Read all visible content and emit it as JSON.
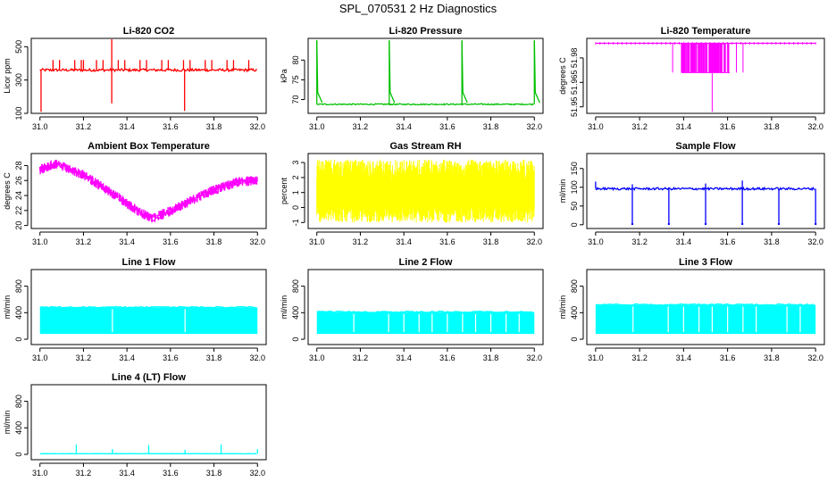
{
  "page": {
    "title": "SPL_070531  2 Hz Diagnostics"
  },
  "colors": {
    "axis": "#000000",
    "background": "#ffffff"
  },
  "chart_data": [
    {
      "id": "co2",
      "type": "line",
      "title": "Li-820 CO2",
      "ylabel": "Licor ppm",
      "color": "#ff0000",
      "xlim": [
        31.0,
        32.0
      ],
      "ylim": [
        100,
        550
      ],
      "xticks": [
        31.0,
        31.2,
        31.4,
        31.6,
        31.8,
        32.0
      ],
      "xtick_labels": [
        "31.0",
        "31.2",
        "31.4",
        "31.6",
        "31.8",
        "32.0"
      ],
      "yticks": [
        100,
        300,
        500
      ],
      "ytick_labels": [
        "100",
        "300",
        "500"
      ],
      "baseline": 360,
      "noise": 8,
      "spikes_up": [
        31.06,
        31.09,
        31.16,
        31.19,
        31.26,
        31.29,
        31.36,
        31.39,
        31.46,
        31.49,
        31.56,
        31.59,
        31.66,
        31.69,
        31.76,
        31.79,
        31.86,
        31.89,
        31.96
      ],
      "spike_up_value": 420,
      "extremes": [
        {
          "x": 31.005,
          "y": 110
        },
        {
          "x": 31.33,
          "y": 545
        },
        {
          "x": 31.33,
          "y": 160
        },
        {
          "x": 31.665,
          "y": 115
        },
        {
          "x": 31.2,
          "y": 420
        }
      ]
    },
    {
      "id": "pressure",
      "type": "line",
      "title": "Li-820 Pressure",
      "ylabel": "kPa",
      "color": "#00c000",
      "xlim": [
        31.0,
        32.0
      ],
      "ylim": [
        66.5,
        85.5
      ],
      "xticks": [
        31.0,
        31.2,
        31.4,
        31.6,
        31.8,
        32.0
      ],
      "xtick_labels": [
        "31.0",
        "31.2",
        "31.4",
        "31.6",
        "31.8",
        "32.0"
      ],
      "yticks": [
        70,
        75,
        80
      ],
      "ytick_labels": [
        "70",
        "75",
        "80"
      ],
      "baseline": 68.8,
      "noise": 0.15,
      "spikes_up": [
        31.0,
        31.333,
        31.667,
        32.0
      ],
      "spike_up_value": 85.0
    },
    {
      "id": "licor_temp",
      "type": "line",
      "title": "Li-820 Temperature",
      "ylabel": "degrees C",
      "color": "#ff00ff",
      "xlim": [
        31.0,
        32.0
      ],
      "ylim": [
        51.946,
        51.992
      ],
      "xticks": [
        31.0,
        31.2,
        31.4,
        31.6,
        31.8,
        32.0
      ],
      "xtick_labels": [
        "31.0",
        "31.2",
        "31.4",
        "31.6",
        "31.8",
        "32.0"
      ],
      "yticks": [
        51.95,
        51.965,
        51.98
      ],
      "ytick_labels": [
        "51.95",
        "51.965",
        "51.98"
      ],
      "baseline": 51.989,
      "low_level": 51.971,
      "band": [
        31.39,
        31.61
      ],
      "sparse": [
        31.35,
        31.64,
        31.67
      ],
      "dip": {
        "x": 31.53,
        "y": 51.947
      }
    },
    {
      "id": "box_temp",
      "type": "area",
      "title": "Ambient Box Temperature",
      "ylabel": "degrees C",
      "color": "#ff00ff",
      "xlim": [
        31.0,
        32.0
      ],
      "ylim": [
        19.6,
        29.6
      ],
      "xticks": [
        31.0,
        31.2,
        31.4,
        31.6,
        31.8,
        32.0
      ],
      "xtick_labels": [
        "31.0",
        "31.2",
        "31.4",
        "31.6",
        "31.8",
        "32.0"
      ],
      "yticks": [
        20,
        22,
        24,
        26,
        28
      ],
      "ytick_labels": [
        "20",
        "22",
        "24",
        "26",
        "28"
      ],
      "center": [
        {
          "x": 31.0,
          "y": 27.5
        },
        {
          "x": 31.07,
          "y": 28.3
        },
        {
          "x": 31.2,
          "y": 26.8
        },
        {
          "x": 31.35,
          "y": 24.0
        },
        {
          "x": 31.47,
          "y": 21.6
        },
        {
          "x": 31.52,
          "y": 21.0
        },
        {
          "x": 31.6,
          "y": 22.0
        },
        {
          "x": 31.75,
          "y": 24.2
        },
        {
          "x": 31.9,
          "y": 25.8
        },
        {
          "x": 32.0,
          "y": 26.1
        }
      ],
      "noise": 0.9
    },
    {
      "id": "rh",
      "type": "area",
      "title": "Gas Stream RH",
      "ylabel": "percent",
      "color": "#ffff00",
      "xlim": [
        31.0,
        32.0
      ],
      "ylim": [
        -1.4,
        3.6
      ],
      "xticks": [
        31.0,
        31.2,
        31.4,
        31.6,
        31.8,
        32.0
      ],
      "xtick_labels": [
        "31.0",
        "31.2",
        "31.4",
        "31.6",
        "31.8",
        "32.0"
      ],
      "yticks": [
        -1,
        0,
        1,
        2,
        3
      ],
      "ytick_labels": [
        "-1",
        "0",
        "1",
        "2",
        "3"
      ],
      "low": -1.0,
      "high": 3.2
    },
    {
      "id": "sample_flow",
      "type": "line",
      "title": "Sample Flow",
      "ylabel": "ml/min",
      "color": "#0000ff",
      "xlim": [
        31.0,
        32.0
      ],
      "ylim": [
        -10,
        190
      ],
      "xticks": [
        31.0,
        31.2,
        31.4,
        31.6,
        31.8,
        32.0
      ],
      "xtick_labels": [
        "31.0",
        "31.2",
        "31.4",
        "31.6",
        "31.8",
        "32.0"
      ],
      "yticks": [
        0,
        50,
        100,
        150
      ],
      "ytick_labels": [
        "0",
        "50",
        "100",
        "150"
      ],
      "baseline": 96,
      "noise": 3,
      "dips": [
        31.167,
        31.333,
        31.5,
        31.667,
        31.833,
        32.0
      ],
      "dip_value": 2,
      "peaks": [
        {
          "x": 31.0,
          "y": 115
        },
        {
          "x": 31.5,
          "y": 110
        },
        {
          "x": 31.667,
          "y": 118
        },
        {
          "x": 31.167,
          "y": 108
        }
      ]
    },
    {
      "id": "line1",
      "type": "area",
      "title": "Line 1 Flow",
      "ylabel": "ml/min",
      "color": "#00ffff",
      "xlim": [
        31.0,
        32.0
      ],
      "ylim": [
        -80,
        1050
      ],
      "xticks": [
        31.0,
        31.2,
        31.4,
        31.6,
        31.8,
        32.0
      ],
      "xtick_labels": [
        "31.0",
        "31.2",
        "31.4",
        "31.6",
        "31.8",
        "32.0"
      ],
      "yticks": [
        0,
        400,
        800
      ],
      "ytick_labels": [
        "0",
        "400",
        "800"
      ],
      "low": 80,
      "high": 480,
      "gaps": [
        31.333,
        31.667
      ]
    },
    {
      "id": "line2",
      "type": "area",
      "title": "Line 2 Flow",
      "ylabel": "ml/min",
      "color": "#00ffff",
      "xlim": [
        31.0,
        32.0
      ],
      "ylim": [
        -80,
        1050
      ],
      "xticks": [
        31.0,
        31.2,
        31.4,
        31.6,
        31.8,
        32.0
      ],
      "xtick_labels": [
        "31.0",
        "31.2",
        "31.4",
        "31.6",
        "31.8",
        "32.0"
      ],
      "yticks": [
        0,
        400,
        800
      ],
      "ytick_labels": [
        "0",
        "400",
        "800"
      ],
      "low": 80,
      "high": 410,
      "gaps": [
        31.17,
        31.33,
        31.4,
        31.47,
        31.53,
        31.6,
        31.67,
        31.73,
        31.8,
        31.87,
        31.93
      ]
    },
    {
      "id": "line3",
      "type": "area",
      "title": "Line 3 Flow",
      "ylabel": "ml/min",
      "color": "#00ffff",
      "xlim": [
        31.0,
        32.0
      ],
      "ylim": [
        -80,
        1050
      ],
      "xticks": [
        31.0,
        31.2,
        31.4,
        31.6,
        31.8,
        32.0
      ],
      "xtick_labels": [
        "31.0",
        "31.2",
        "31.4",
        "31.6",
        "31.8",
        "32.0"
      ],
      "yticks": [
        0,
        400,
        800
      ],
      "ytick_labels": [
        "0",
        "400",
        "800"
      ],
      "low": 80,
      "high": 520,
      "gaps": [
        31.17,
        31.33,
        31.4,
        31.47,
        31.53,
        31.6,
        31.67,
        31.73,
        31.87,
        31.93
      ]
    },
    {
      "id": "line4",
      "type": "line",
      "title": "Line 4 (LT) Flow",
      "ylabel": "ml/min",
      "color": "#00ffff",
      "xlim": [
        31.0,
        32.0
      ],
      "ylim": [
        -80,
        1050
      ],
      "xticks": [
        31.0,
        31.2,
        31.4,
        31.6,
        31.8,
        32.0
      ],
      "xtick_labels": [
        "31.0",
        "31.2",
        "31.4",
        "31.6",
        "31.8",
        "32.0"
      ],
      "yticks": [
        0,
        400,
        800
      ],
      "ytick_labels": [
        "0",
        "400",
        "800"
      ],
      "baseline": 10,
      "noise": 2,
      "spikes": [
        {
          "x": 31.167,
          "y": 150
        },
        {
          "x": 31.333,
          "y": 80
        },
        {
          "x": 31.5,
          "y": 140
        },
        {
          "x": 31.667,
          "y": 70
        },
        {
          "x": 31.833,
          "y": 150
        },
        {
          "x": 32.0,
          "y": 80
        }
      ]
    }
  ]
}
